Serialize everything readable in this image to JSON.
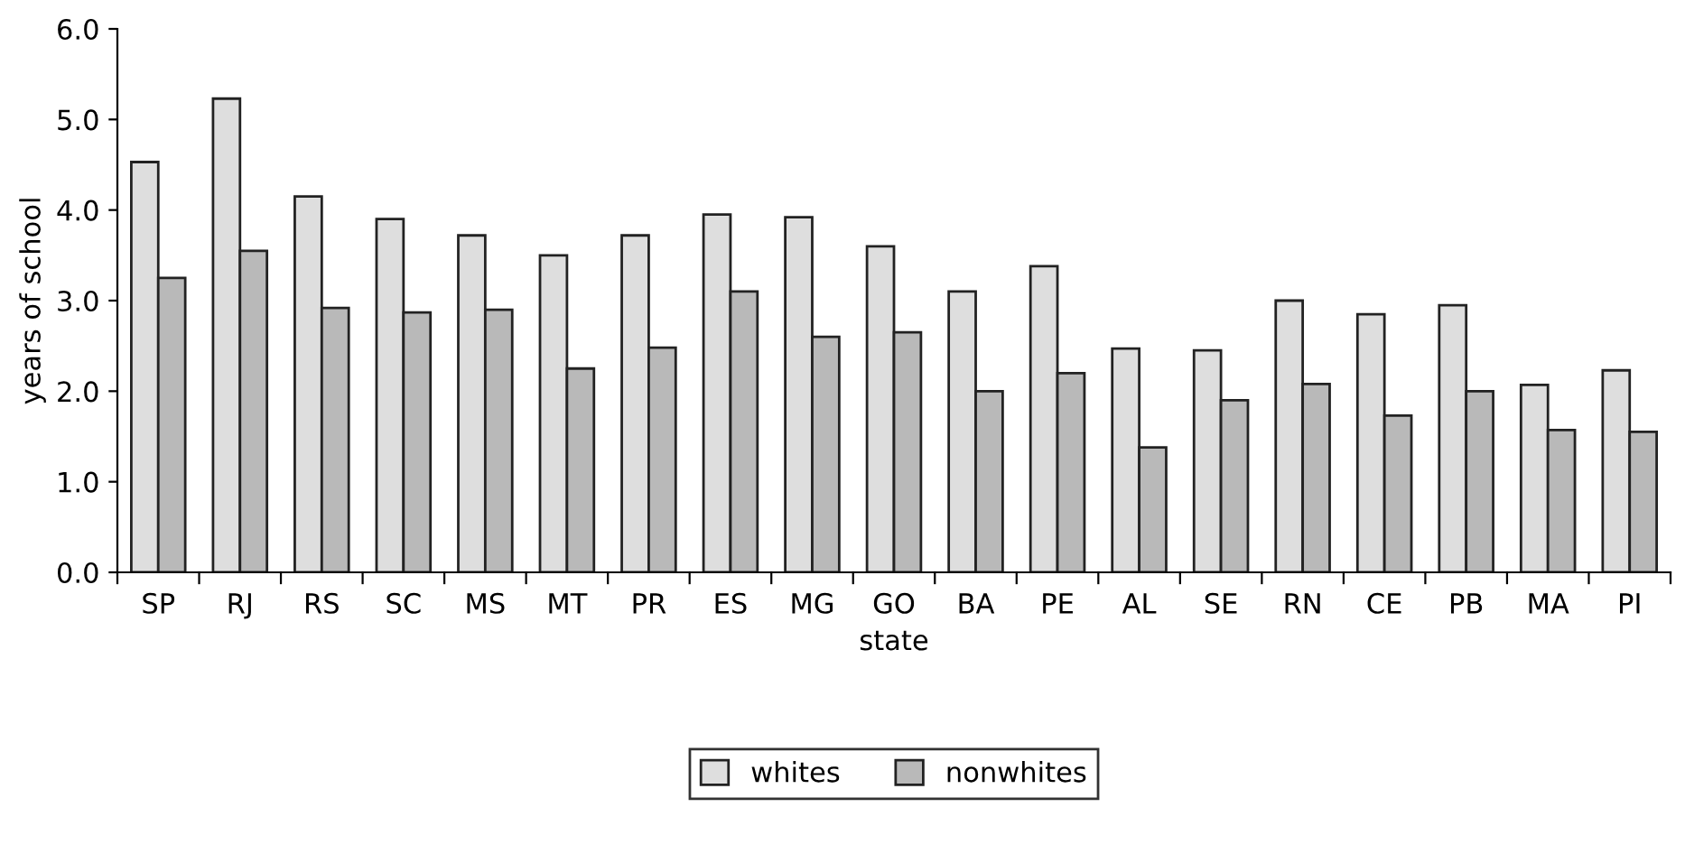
{
  "chart_data": {
    "type": "bar",
    "xlabel": "state",
    "ylabel": "years of school",
    "categories": [
      "SP",
      "RJ",
      "RS",
      "SC",
      "MS",
      "MT",
      "PR",
      "ES",
      "MG",
      "GO",
      "BA",
      "PE",
      "AL",
      "SE",
      "RN",
      "CE",
      "PB",
      "MA",
      "PI"
    ],
    "series": [
      {
        "name": "whites",
        "color": "#dedede",
        "values": [
          4.53,
          5.23,
          4.15,
          3.9,
          3.72,
          3.5,
          3.72,
          3.95,
          3.92,
          3.6,
          3.1,
          3.38,
          2.47,
          2.45,
          3.0,
          2.85,
          2.95,
          2.07,
          2.23
        ]
      },
      {
        "name": "nonwhites",
        "color": "#b9b9b9",
        "values": [
          3.25,
          3.55,
          2.92,
          2.87,
          2.9,
          2.25,
          2.48,
          3.1,
          2.6,
          2.65,
          2.0,
          2.2,
          1.38,
          1.9,
          2.08,
          1.73,
          2.0,
          1.57,
          1.55
        ]
      }
    ],
    "ylim": [
      0,
      6
    ],
    "yticks": [
      {
        "value": 0,
        "label": "0.0"
      },
      {
        "value": 1,
        "label": "1.0"
      },
      {
        "value": 2,
        "label": "2.0"
      },
      {
        "value": 3,
        "label": "3.0"
      },
      {
        "value": 4,
        "label": "4.0"
      },
      {
        "value": 5,
        "label": "5.0"
      },
      {
        "value": 6,
        "label": "6.0"
      }
    ],
    "grid": false,
    "legend": "bottom"
  }
}
